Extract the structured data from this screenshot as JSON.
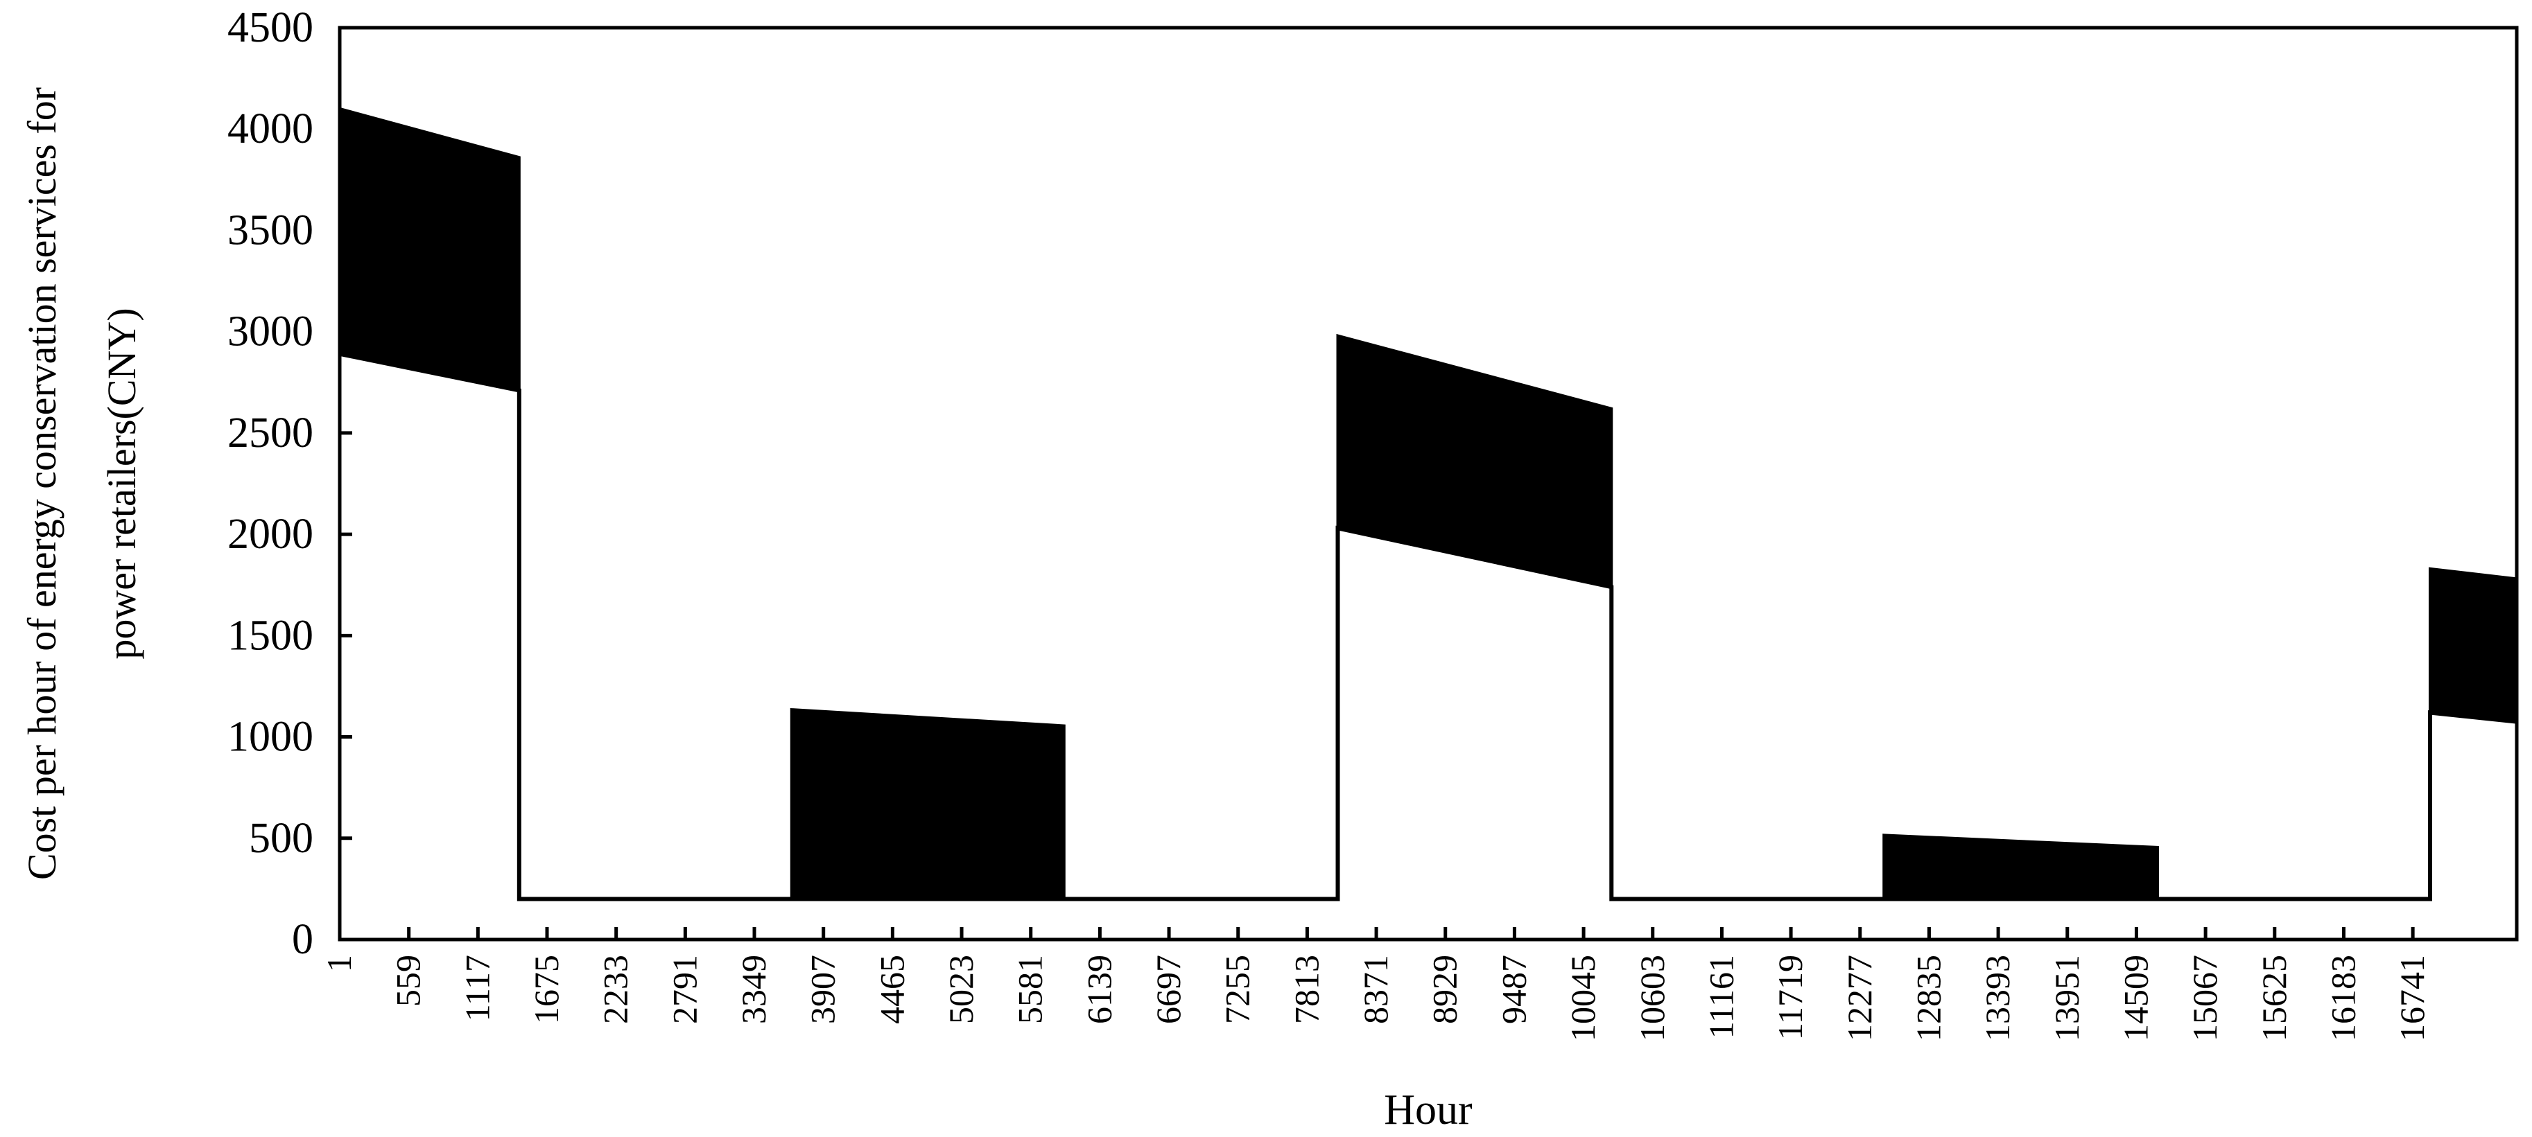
{
  "chart_data": {
    "type": "area",
    "title": "",
    "xlabel": "Hour",
    "ylabel_lines": [
      "Cost per hour of energy conservation services for",
      "power retailers(CNY)"
    ],
    "xlim": [
      1,
      17580
    ],
    "ylim": [
      0,
      4500
    ],
    "y_ticks": [
      0,
      500,
      1000,
      1500,
      2000,
      2500,
      3000,
      3500,
      4000,
      4500
    ],
    "x_tick_labels": [
      "1",
      "559",
      "1117",
      "1675",
      "2233",
      "2791",
      "3349",
      "3907",
      "4465",
      "5023",
      "5581",
      "6139",
      "6697",
      "7255",
      "7813",
      "8371",
      "8929",
      "9487",
      "10045",
      "10603",
      "11161",
      "11719",
      "12277",
      "12835",
      "13393",
      "13951",
      "14509",
      "15067",
      "15625",
      "16183",
      "16741"
    ],
    "grid": false,
    "legend": "none",
    "baseline_value": 200,
    "series": [
      {
        "segments": [
          {
            "x_start": 1,
            "x_end": 1450,
            "top": [
              4100,
              3860
            ],
            "bottom": [
              2890,
              2710
            ]
          },
          {
            "x_start": 1450,
            "x_end": 3650,
            "top": [
              200,
              200
            ],
            "bottom": [
              200,
              200
            ]
          },
          {
            "x_start": 3650,
            "x_end": 5850,
            "top": [
              1135,
              1055
            ],
            "bottom": [
              200,
              200
            ]
          },
          {
            "x_start": 5850,
            "x_end": 8060,
            "top": [
              200,
              200
            ],
            "bottom": [
              200,
              200
            ]
          },
          {
            "x_start": 8060,
            "x_end": 10270,
            "top": [
              2980,
              2620
            ],
            "bottom": [
              2030,
              1740
            ]
          },
          {
            "x_start": 10270,
            "x_end": 12470,
            "top": [
              200,
              200
            ],
            "bottom": [
              200,
              200
            ]
          },
          {
            "x_start": 12470,
            "x_end": 14680,
            "top": [
              515,
              455
            ],
            "bottom": [
              200,
              200
            ]
          },
          {
            "x_start": 14680,
            "x_end": 16880,
            "top": [
              200,
              200
            ],
            "bottom": [
              200,
              200
            ]
          },
          {
            "x_start": 16880,
            "x_end": 17580,
            "top": [
              1830,
              1780
            ],
            "bottom": [
              1120,
              1075
            ]
          }
        ]
      }
    ]
  }
}
